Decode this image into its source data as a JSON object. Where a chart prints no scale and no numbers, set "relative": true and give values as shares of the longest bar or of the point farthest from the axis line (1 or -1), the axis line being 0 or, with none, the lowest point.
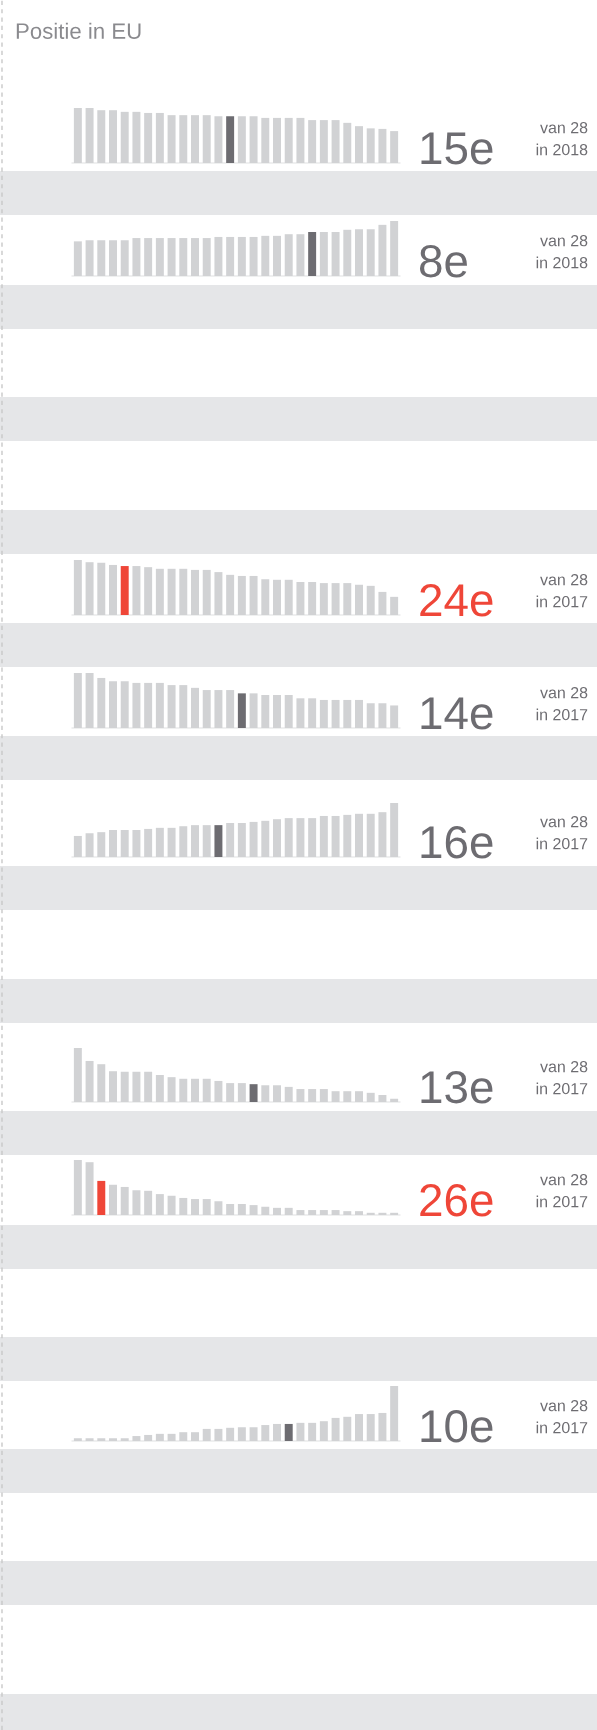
{
  "chart_data": [
    {
      "type": "bar",
      "title": "Positie in EU",
      "relative": true,
      "categories": [
        null,
        null,
        null,
        null,
        null,
        null,
        null,
        null,
        null,
        null,
        null,
        null,
        null,
        null,
        null,
        null,
        null,
        null,
        null,
        null,
        null,
        null,
        null,
        null,
        null,
        null,
        null,
        null
      ],
      "values": [
        1,
        1,
        0.96,
        0.96,
        0.93,
        0.93,
        0.91,
        0.91,
        0.87,
        0.87,
        0.87,
        0.87,
        0.85,
        0.85,
        0.85,
        0.85,
        0.82,
        0.82,
        0.82,
        0.82,
        0.78,
        0.78,
        0.78,
        0.73,
        0.67,
        0.63,
        0.62,
        0.58
      ],
      "colors": [
        "#d1d2d4",
        "#d1d2d4",
        "#d1d2d4",
        "#d1d2d4",
        "#d1d2d4",
        "#d1d2d4",
        "#d1d2d4",
        "#d1d2d4",
        "#d1d2d4",
        "#d1d2d4",
        "#d1d2d4",
        "#d1d2d4",
        "#d1d2d4",
        "#6d6c71",
        "#d1d2d4",
        "#d1d2d4",
        "#d1d2d4",
        "#d1d2d4",
        "#d1d2d4",
        "#d1d2d4",
        "#d1d2d4",
        "#d1d2d4",
        "#d1d2d4",
        "#d1d2d4",
        "#d1d2d4",
        "#d1d2d4",
        "#d1d2d4",
        "#d1d2d4"
      ],
      "annotations": [
        "15e",
        "van 28",
        "in 2018"
      ]
    },
    {
      "type": "bar",
      "relative": true,
      "categories": [
        null,
        null,
        null,
        null,
        null,
        null,
        null,
        null,
        null,
        null,
        null,
        null,
        null,
        null,
        null,
        null,
        null,
        null,
        null,
        null,
        null,
        null,
        null,
        null,
        null,
        null,
        null,
        null
      ],
      "values": [
        0.63,
        0.65,
        0.65,
        0.65,
        0.65,
        0.69,
        0.69,
        0.69,
        0.69,
        0.69,
        0.69,
        0.69,
        0.71,
        0.71,
        0.71,
        0.71,
        0.73,
        0.73,
        0.76,
        0.76,
        0.8,
        0.8,
        0.8,
        0.84,
        0.85,
        0.85,
        0.93,
        1
      ],
      "colors": [
        "#d1d2d4",
        "#d1d2d4",
        "#d1d2d4",
        "#d1d2d4",
        "#d1d2d4",
        "#d1d2d4",
        "#d1d2d4",
        "#d1d2d4",
        "#d1d2d4",
        "#d1d2d4",
        "#d1d2d4",
        "#d1d2d4",
        "#d1d2d4",
        "#d1d2d4",
        "#d1d2d4",
        "#d1d2d4",
        "#d1d2d4",
        "#d1d2d4",
        "#d1d2d4",
        "#d1d2d4",
        "#6d6c71",
        "#d1d2d4",
        "#d1d2d4",
        "#d1d2d4",
        "#d1d2d4",
        "#d1d2d4",
        "#d1d2d4",
        "#d1d2d4"
      ],
      "annotations": [
        "8e",
        "van 28",
        "in 2018"
      ]
    },
    {
      "type": "bar",
      "relative": true,
      "categories": [
        null,
        null,
        null,
        null,
        null,
        null,
        null,
        null,
        null,
        null,
        null,
        null,
        null,
        null,
        null,
        null,
        null,
        null,
        null,
        null,
        null,
        null,
        null,
        null,
        null,
        null,
        null,
        null
      ],
      "values": [
        1,
        0.96,
        0.95,
        0.91,
        0.89,
        0.89,
        0.87,
        0.84,
        0.84,
        0.84,
        0.82,
        0.82,
        0.78,
        0.73,
        0.71,
        0.71,
        0.65,
        0.64,
        0.64,
        0.6,
        0.6,
        0.58,
        0.58,
        0.58,
        0.55,
        0.53,
        0.42,
        0.33
      ],
      "colors": [
        "#d1d2d4",
        "#d1d2d4",
        "#d1d2d4",
        "#d1d2d4",
        "#ef4638",
        "#d1d2d4",
        "#d1d2d4",
        "#d1d2d4",
        "#d1d2d4",
        "#d1d2d4",
        "#d1d2d4",
        "#d1d2d4",
        "#d1d2d4",
        "#d1d2d4",
        "#d1d2d4",
        "#d1d2d4",
        "#d1d2d4",
        "#d1d2d4",
        "#d1d2d4",
        "#d1d2d4",
        "#d1d2d4",
        "#d1d2d4",
        "#d1d2d4",
        "#d1d2d4",
        "#d1d2d4",
        "#d1d2d4",
        "#d1d2d4",
        "#d1d2d4"
      ],
      "annotations": [
        "24e",
        "van 28",
        "in 2017"
      ]
    },
    {
      "type": "bar",
      "relative": true,
      "categories": [
        null,
        null,
        null,
        null,
        null,
        null,
        null,
        null,
        null,
        null,
        null,
        null,
        null,
        null,
        null,
        null,
        null,
        null,
        null,
        null,
        null,
        null,
        null,
        null,
        null,
        null,
        null,
        null
      ],
      "values": [
        1,
        1,
        0.91,
        0.85,
        0.85,
        0.82,
        0.82,
        0.82,
        0.78,
        0.78,
        0.73,
        0.69,
        0.69,
        0.69,
        0.63,
        0.63,
        0.6,
        0.6,
        0.6,
        0.54,
        0.54,
        0.51,
        0.51,
        0.51,
        0.51,
        0.45,
        0.45,
        0.41
      ],
      "colors": [
        "#d1d2d4",
        "#d1d2d4",
        "#d1d2d4",
        "#d1d2d4",
        "#d1d2d4",
        "#d1d2d4",
        "#d1d2d4",
        "#d1d2d4",
        "#d1d2d4",
        "#d1d2d4",
        "#d1d2d4",
        "#d1d2d4",
        "#d1d2d4",
        "#d1d2d4",
        "#6d6c71",
        "#d1d2d4",
        "#d1d2d4",
        "#d1d2d4",
        "#d1d2d4",
        "#d1d2d4",
        "#d1d2d4",
        "#d1d2d4",
        "#d1d2d4",
        "#d1d2d4",
        "#d1d2d4",
        "#d1d2d4",
        "#d1d2d4",
        "#d1d2d4"
      ],
      "annotations": [
        "14e",
        "van 28",
        "in 2017"
      ]
    },
    {
      "type": "bar",
      "relative": true,
      "categories": [
        null,
        null,
        null,
        null,
        null,
        null,
        null,
        null,
        null,
        null,
        null,
        null,
        null,
        null,
        null,
        null,
        null,
        null,
        null,
        null,
        null,
        null,
        null,
        null,
        null,
        null,
        null,
        null
      ],
      "values": [
        0.39,
        0.44,
        0.46,
        0.5,
        0.5,
        0.5,
        0.52,
        0.54,
        0.54,
        0.57,
        0.59,
        0.59,
        0.59,
        0.63,
        0.63,
        0.65,
        0.67,
        0.7,
        0.72,
        0.72,
        0.72,
        0.76,
        0.76,
        0.78,
        0.8,
        0.8,
        0.83,
        1
      ],
      "colors": [
        "#d1d2d4",
        "#d1d2d4",
        "#d1d2d4",
        "#d1d2d4",
        "#d1d2d4",
        "#d1d2d4",
        "#d1d2d4",
        "#d1d2d4",
        "#d1d2d4",
        "#d1d2d4",
        "#d1d2d4",
        "#d1d2d4",
        "#6d6c71",
        "#d1d2d4",
        "#d1d2d4",
        "#d1d2d4",
        "#d1d2d4",
        "#d1d2d4",
        "#d1d2d4",
        "#d1d2d4",
        "#d1d2d4",
        "#d1d2d4",
        "#d1d2d4",
        "#d1d2d4",
        "#d1d2d4",
        "#d1d2d4",
        "#d1d2d4",
        "#d1d2d4"
      ],
      "annotations": [
        "16e",
        "van 28",
        "in 2017"
      ]
    },
    {
      "type": "bar",
      "relative": true,
      "categories": [
        null,
        null,
        null,
        null,
        null,
        null,
        null,
        null,
        null,
        null,
        null,
        null,
        null,
        null,
        null,
        null,
        null,
        null,
        null,
        null,
        null,
        null,
        null,
        null,
        null,
        null,
        null,
        null
      ],
      "values": [
        1,
        0.76,
        0.7,
        0.57,
        0.56,
        0.56,
        0.56,
        0.5,
        0.46,
        0.43,
        0.43,
        0.43,
        0.39,
        0.35,
        0.35,
        0.33,
        0.31,
        0.31,
        0.28,
        0.24,
        0.24,
        0.24,
        0.2,
        0.2,
        0.2,
        0.17,
        0.13,
        0.06
      ],
      "colors": [
        "#d1d2d4",
        "#d1d2d4",
        "#d1d2d4",
        "#d1d2d4",
        "#d1d2d4",
        "#d1d2d4",
        "#d1d2d4",
        "#d1d2d4",
        "#d1d2d4",
        "#d1d2d4",
        "#d1d2d4",
        "#d1d2d4",
        "#d1d2d4",
        "#d1d2d4",
        "#d1d2d4",
        "#6d6c71",
        "#d1d2d4",
        "#d1d2d4",
        "#d1d2d4",
        "#d1d2d4",
        "#d1d2d4",
        "#d1d2d4",
        "#d1d2d4",
        "#d1d2d4",
        "#d1d2d4",
        "#d1d2d4",
        "#d1d2d4",
        "#d1d2d4"
      ],
      "annotations": [
        "13e",
        "van 28",
        "in 2017"
      ]
    },
    {
      "type": "bar",
      "relative": true,
      "categories": [
        null,
        null,
        null,
        null,
        null,
        null,
        null,
        null,
        null,
        null,
        null,
        null,
        null,
        null,
        null,
        null,
        null,
        null,
        null,
        null,
        null,
        null,
        null,
        null,
        null,
        null,
        null,
        null
      ],
      "values": [
        1,
        0.96,
        0.62,
        0.55,
        0.51,
        0.45,
        0.44,
        0.38,
        0.35,
        0.31,
        0.29,
        0.29,
        0.25,
        0.2,
        0.2,
        0.18,
        0.15,
        0.13,
        0.13,
        0.09,
        0.09,
        0.09,
        0.09,
        0.07,
        0.07,
        0.04,
        0.04,
        0.04
      ],
      "colors": [
        "#d1d2d4",
        "#d1d2d4",
        "#ef4638",
        "#d1d2d4",
        "#d1d2d4",
        "#d1d2d4",
        "#d1d2d4",
        "#d1d2d4",
        "#d1d2d4",
        "#d1d2d4",
        "#d1d2d4",
        "#d1d2d4",
        "#d1d2d4",
        "#d1d2d4",
        "#d1d2d4",
        "#d1d2d4",
        "#d1d2d4",
        "#d1d2d4",
        "#d1d2d4",
        "#d1d2d4",
        "#d1d2d4",
        "#d1d2d4",
        "#d1d2d4",
        "#d1d2d4",
        "#d1d2d4",
        "#d1d2d4",
        "#d1d2d4",
        "#d1d2d4"
      ],
      "annotations": [
        "26e",
        "van 28",
        "in 2017"
      ]
    },
    {
      "type": "bar",
      "relative": true,
      "categories": [
        null,
        null,
        null,
        null,
        null,
        null,
        null,
        null,
        null,
        null,
        null,
        null,
        null,
        null,
        null,
        null,
        null,
        null,
        null,
        null,
        null,
        null,
        null,
        null,
        null,
        null,
        null,
        null
      ],
      "values": [
        0.05,
        0.05,
        0.05,
        0.05,
        0.05,
        0.09,
        0.11,
        0.13,
        0.13,
        0.16,
        0.16,
        0.22,
        0.22,
        0.24,
        0.25,
        0.25,
        0.29,
        0.31,
        0.31,
        0.33,
        0.33,
        0.36,
        0.42,
        0.44,
        0.49,
        0.49,
        0.51,
        1
      ],
      "colors": [
        "#d1d2d4",
        "#d1d2d4",
        "#d1d2d4",
        "#d1d2d4",
        "#d1d2d4",
        "#d1d2d4",
        "#d1d2d4",
        "#d1d2d4",
        "#d1d2d4",
        "#d1d2d4",
        "#d1d2d4",
        "#d1d2d4",
        "#d1d2d4",
        "#d1d2d4",
        "#d1d2d4",
        "#d1d2d4",
        "#d1d2d4",
        "#d1d2d4",
        "#6d6c71",
        "#d1d2d4",
        "#d1d2d4",
        "#d1d2d4",
        "#d1d2d4",
        "#d1d2d4",
        "#d1d2d4",
        "#d1d2d4",
        "#d1d2d4",
        "#d1d2d4"
      ],
      "annotations": [
        "10e",
        "van 28",
        "in 2017"
      ]
    }
  ]
}
